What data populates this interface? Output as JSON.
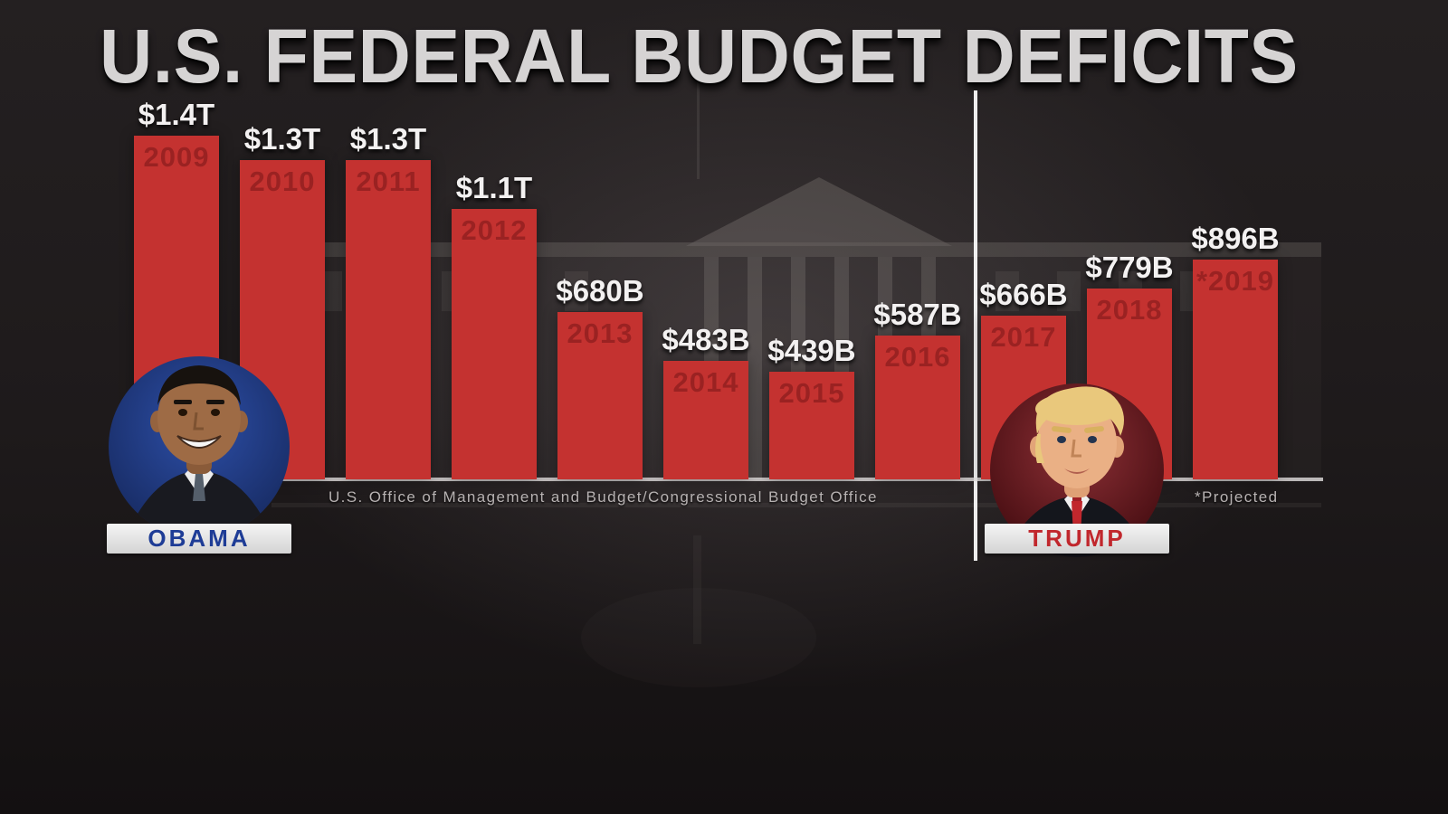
{
  "title": "U.S. FEDERAL BUDGET DEFICITS",
  "source": "U.S. Office of Management and Budget/Congressional Budget Office",
  "projected_note": "*Projected",
  "presidents": {
    "obama": {
      "name": "OBAMA"
    },
    "trump": {
      "name": "TRUMP"
    }
  },
  "colors": {
    "bar": "#c43230",
    "year_text": "#9a2222",
    "value_text": "#f3f1f1",
    "obama_name": "#1e3c96",
    "trump_name": "#c1272d"
  },
  "chart_data": {
    "type": "bar",
    "title": "U.S. FEDERAL BUDGET DEFICITS",
    "unit": "USD billions",
    "ylim": [
      0,
      1400
    ],
    "grid": false,
    "legend": "none",
    "categories": [
      "2009",
      "2010",
      "2011",
      "2012",
      "2013",
      "2014",
      "2015",
      "2016",
      "2017",
      "2018",
      "2019"
    ],
    "values": [
      1400,
      1300,
      1300,
      1100,
      680,
      483,
      439,
      587,
      666,
      779,
      896
    ],
    "bars": [
      {
        "year": "2009",
        "year_label": "2009",
        "value_label": "$1.4T",
        "value_billions": 1400,
        "president": "Obama"
      },
      {
        "year": "2010",
        "year_label": "2010",
        "value_label": "$1.3T",
        "value_billions": 1300,
        "president": "Obama"
      },
      {
        "year": "2011",
        "year_label": "2011",
        "value_label": "$1.3T",
        "value_billions": 1300,
        "president": "Obama"
      },
      {
        "year": "2012",
        "year_label": "2012",
        "value_label": "$1.1T",
        "value_billions": 1100,
        "president": "Obama"
      },
      {
        "year": "2013",
        "year_label": "2013",
        "value_label": "$680B",
        "value_billions": 680,
        "president": "Obama"
      },
      {
        "year": "2014",
        "year_label": "2014",
        "value_label": "$483B",
        "value_billions": 483,
        "president": "Obama"
      },
      {
        "year": "2015",
        "year_label": "2015",
        "value_label": "$439B",
        "value_billions": 439,
        "president": "Obama"
      },
      {
        "year": "2016",
        "year_label": "2016",
        "value_label": "$587B",
        "value_billions": 587,
        "president": "Obama"
      },
      {
        "year": "2017",
        "year_label": "2017",
        "value_label": "$666B",
        "value_billions": 666,
        "president": "Trump"
      },
      {
        "year": "2018",
        "year_label": "2018",
        "value_label": "$779B",
        "value_billions": 779,
        "president": "Trump"
      },
      {
        "year": "2019",
        "year_label": "*2019",
        "value_label": "$896B",
        "value_billions": 896,
        "president": "Trump",
        "projected": true
      }
    ],
    "annotations": [
      "*Projected"
    ],
    "source": "U.S. Office of Management and Budget/Congressional Budget Office"
  }
}
